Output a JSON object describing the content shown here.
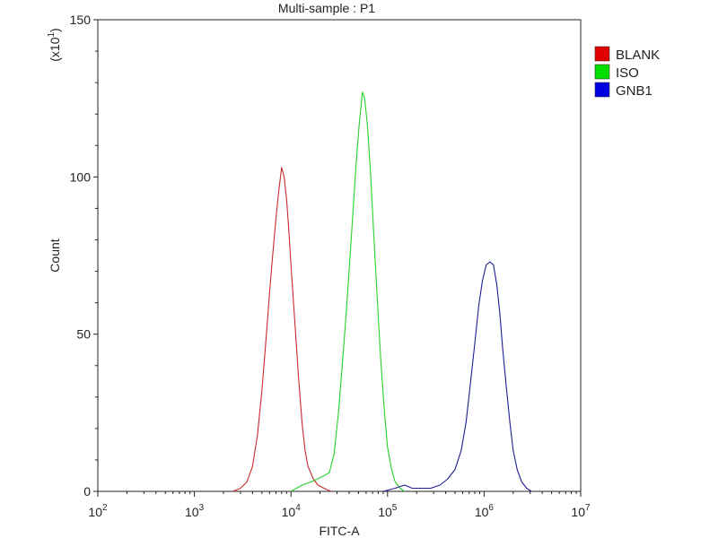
{
  "chart_data": {
    "type": "line",
    "title": "Multi-sample : P1",
    "xlabel": "FITC-A",
    "ylabel": "Count",
    "y_multiplier": {
      "base": "(x10",
      "exp": "1",
      "close": ")"
    },
    "x_scale": "log",
    "xlim": [
      100,
      10000000
    ],
    "ylim": [
      0,
      150
    ],
    "x_ticks": [
      {
        "value": 100,
        "base": "10",
        "exp": "2"
      },
      {
        "value": 1000,
        "base": "10",
        "exp": "3"
      },
      {
        "value": 10000,
        "base": "10",
        "exp": "4"
      },
      {
        "value": 100000,
        "base": "10",
        "exp": "5"
      },
      {
        "value": 1000000,
        "base": "10",
        "exp": "6"
      },
      {
        "value": 10000000,
        "base": "10",
        "exp": "7"
      }
    ],
    "y_ticks": [
      {
        "value": 0,
        "label": "0"
      },
      {
        "value": 50,
        "label": "50"
      },
      {
        "value": 100,
        "label": "100"
      },
      {
        "value": 150,
        "label": "150"
      }
    ],
    "grid": false,
    "legend_position": "top-right",
    "series": [
      {
        "name": "BLANK",
        "color": "#c8282d",
        "legend_color": "#e00000",
        "points": [
          [
            2500,
            0
          ],
          [
            3000,
            1
          ],
          [
            3500,
            3
          ],
          [
            4000,
            8
          ],
          [
            4500,
            18
          ],
          [
            5000,
            32
          ],
          [
            5500,
            48
          ],
          [
            6000,
            63
          ],
          [
            6500,
            76
          ],
          [
            7000,
            87
          ],
          [
            7500,
            96
          ],
          [
            8000,
            103
          ],
          [
            8500,
            100
          ],
          [
            9000,
            93
          ],
          [
            9500,
            83
          ],
          [
            10000,
            72
          ],
          [
            11000,
            53
          ],
          [
            12000,
            36
          ],
          [
            13000,
            22
          ],
          [
            14000,
            13
          ],
          [
            15000,
            8
          ],
          [
            17000,
            4
          ],
          [
            19000,
            2
          ],
          [
            22000,
            1
          ],
          [
            26000,
            0
          ]
        ]
      },
      {
        "name": "ISO",
        "color": "#28d228",
        "legend_color": "#00e000",
        "points": [
          [
            10000,
            0
          ],
          [
            13000,
            2
          ],
          [
            16000,
            3
          ],
          [
            19000,
            4
          ],
          [
            22000,
            5
          ],
          [
            25000,
            6
          ],
          [
            28000,
            12
          ],
          [
            31000,
            25
          ],
          [
            35000,
            45
          ],
          [
            39000,
            65
          ],
          [
            43000,
            85
          ],
          [
            47000,
            103
          ],
          [
            51000,
            117
          ],
          [
            55000,
            127
          ],
          [
            58000,
            125
          ],
          [
            62000,
            116
          ],
          [
            67000,
            100
          ],
          [
            72000,
            82
          ],
          [
            78000,
            62
          ],
          [
            85000,
            42
          ],
          [
            93000,
            25
          ],
          [
            100000,
            14
          ],
          [
            110000,
            7
          ],
          [
            120000,
            3
          ],
          [
            135000,
            1
          ],
          [
            150000,
            0
          ]
        ]
      },
      {
        "name": "GNB1",
        "color": "#1e1e96",
        "legend_color": "#0000e0",
        "points": [
          [
            90000,
            0
          ],
          [
            120000,
            1
          ],
          [
            150000,
            2
          ],
          [
            180000,
            1
          ],
          [
            220000,
            1
          ],
          [
            280000,
            1
          ],
          [
            350000,
            2
          ],
          [
            420000,
            4
          ],
          [
            500000,
            7
          ],
          [
            580000,
            13
          ],
          [
            650000,
            22
          ],
          [
            720000,
            34
          ],
          [
            800000,
            47
          ],
          [
            880000,
            59
          ],
          [
            960000,
            67
          ],
          [
            1050000,
            72
          ],
          [
            1150000,
            73
          ],
          [
            1250000,
            72
          ],
          [
            1350000,
            66
          ],
          [
            1450000,
            57
          ],
          [
            1550000,
            46
          ],
          [
            1700000,
            33
          ],
          [
            1850000,
            22
          ],
          [
            2000000,
            13
          ],
          [
            2200000,
            7
          ],
          [
            2450000,
            3
          ],
          [
            2750000,
            1
          ],
          [
            3100000,
            0
          ]
        ]
      }
    ]
  }
}
